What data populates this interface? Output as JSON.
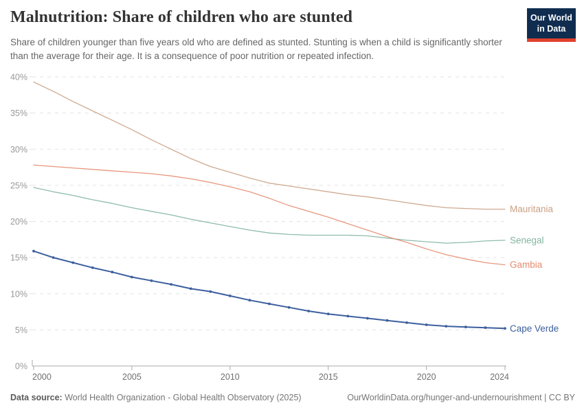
{
  "header": {
    "title": "Malnutrition: Share of children who are stunted",
    "subtitle": "Share of children younger than five years old who are defined as stunted. Stunting is when a child is significantly shorter than the average for their age. It is a consequence of poor nutrition or repeated infection.",
    "logo": {
      "line1": "Our World",
      "line2": "in Data",
      "bg": "#102D50",
      "accent": "#E0422D"
    }
  },
  "chart_data": {
    "type": "line",
    "title": "Malnutrition: Share of children who are stunted",
    "x": [
      2000,
      2001,
      2002,
      2003,
      2004,
      2005,
      2006,
      2007,
      2008,
      2009,
      2010,
      2011,
      2012,
      2013,
      2014,
      2015,
      2016,
      2017,
      2018,
      2019,
      2020,
      2021,
      2022,
      2023,
      2024
    ],
    "x_ticks": [
      2000,
      2005,
      2010,
      2015,
      2020,
      2024
    ],
    "y_ticks": [
      0,
      5,
      10,
      15,
      20,
      25,
      30,
      35,
      40
    ],
    "y_suffix": "%",
    "xlim": [
      2000,
      2024
    ],
    "ylim": [
      0,
      40
    ],
    "grid": "horizontal-dashed",
    "legend_position": "labels-right-of-line-ends",
    "series": [
      {
        "name": "Mauritania",
        "color": "#C9A083",
        "markers": false,
        "values": [
          39.3,
          38.0,
          36.6,
          35.3,
          34.0,
          32.7,
          31.3,
          30.0,
          28.7,
          27.6,
          26.8,
          26.0,
          25.3,
          24.9,
          24.5,
          24.1,
          23.7,
          23.4,
          23.0,
          22.6,
          22.2,
          21.9,
          21.8,
          21.7,
          21.7
        ]
      },
      {
        "name": "Senegal",
        "color": "#83B5A0",
        "markers": false,
        "values": [
          24.7,
          24.1,
          23.6,
          23.0,
          22.5,
          21.9,
          21.4,
          20.9,
          20.3,
          19.8,
          19.3,
          18.8,
          18.4,
          18.2,
          18.1,
          18.1,
          18.1,
          18.0,
          17.7,
          17.4,
          17.2,
          17.0,
          17.1,
          17.3,
          17.4
        ]
      },
      {
        "name": "Gambia",
        "color": "#E68B6F",
        "markers": false,
        "values": [
          27.8,
          27.6,
          27.4,
          27.2,
          27.0,
          26.8,
          26.6,
          26.3,
          25.9,
          25.4,
          24.8,
          24.1,
          23.2,
          22.2,
          21.4,
          20.6,
          19.7,
          18.8,
          17.9,
          17.1,
          16.2,
          15.4,
          14.8,
          14.3,
          14.0
        ]
      },
      {
        "name": "Cape Verde",
        "color": "#3C5F9E",
        "markers": true,
        "values": [
          15.9,
          15.0,
          14.3,
          13.6,
          13.0,
          12.3,
          11.8,
          11.3,
          10.7,
          10.3,
          9.7,
          9.1,
          8.6,
          8.1,
          7.6,
          7.2,
          6.9,
          6.6,
          6.3,
          6.0,
          5.7,
          5.5,
          5.4,
          5.3,
          5.2
        ]
      }
    ],
    "colors": {
      "grid": "#e3e3e3",
      "axis": "#a9a9a9",
      "y_tick_label": "#999999",
      "x_tick_label": "#6f6f6f"
    }
  },
  "footer": {
    "source_label": "Data source:",
    "source_value": " World Health Organization - Global Health Observatory (2025)",
    "link": "OurWorldinData.org/hunger-and-undernourishment | CC BY"
  }
}
